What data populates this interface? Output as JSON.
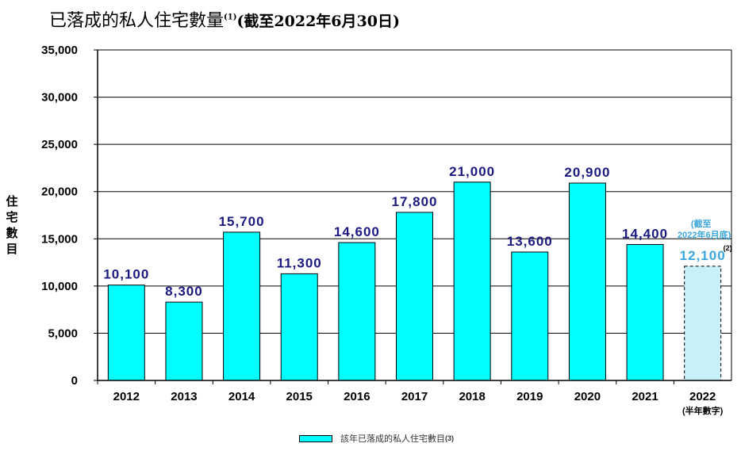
{
  "chart_data": {
    "type": "bar",
    "title": "已落成的私人住宅數量",
    "title_note": "(1)",
    "subtitle": "(截至2022年6月30日)",
    "ylabel": "住宅數目",
    "xlabel": "",
    "categories": [
      "2012",
      "2013",
      "2014",
      "2015",
      "2016",
      "2017",
      "2018",
      "2019",
      "2020",
      "2021",
      "2022"
    ],
    "category_notes": {
      "2022": "(半年數字)"
    },
    "values": [
      10100,
      8300,
      15700,
      11300,
      14600,
      17800,
      21000,
      13600,
      20900,
      14400,
      12100
    ],
    "value_labels": [
      "10,100",
      "8,300",
      "15,700",
      "11,300",
      "14,600",
      "17,800",
      "21,000",
      "13,600",
      "20,900",
      "14,400",
      "12,100"
    ],
    "partial_bar_annotation": {
      "line1": "(截至",
      "line2": "2022年6月底)",
      "note": "(2)"
    },
    "ylim": [
      0,
      35000
    ],
    "yticks": [
      "0",
      "5,000",
      "10,000",
      "15,000",
      "20,000",
      "25,000",
      "30,000",
      "35,000"
    ],
    "grid": true,
    "colors": {
      "bar": "#00ffff",
      "partial_bar": "#c8f0f8",
      "value_label": "#1a1a80",
      "partial_label": "#3ba6dc"
    },
    "legend": {
      "label": "該年已落成的私人住宅數目",
      "note": "(3)",
      "position": "bottom"
    }
  }
}
